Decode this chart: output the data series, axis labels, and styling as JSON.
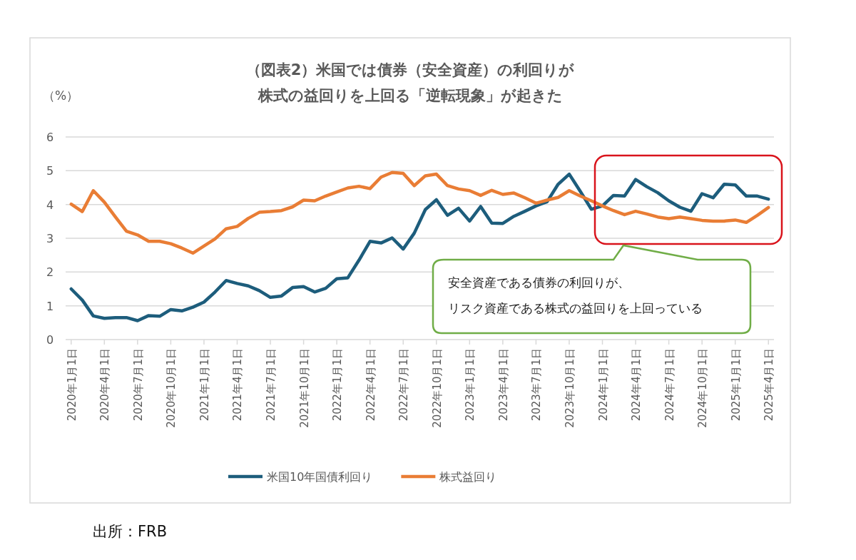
{
  "chart_data": {
    "type": "line",
    "title": "（図表2）米国では債券（安全資産）の利回りが",
    "subtitle": "株式の益回りを上回る「逆転現象」が起きた",
    "ylabel": "（%）",
    "categories": [
      "2020年1月1日",
      null,
      null,
      "2020年4月1日",
      null,
      null,
      "2020年7月1日",
      null,
      null,
      "2020年10月1日",
      null,
      null,
      "2021年1月1日",
      null,
      null,
      "2021年4月1日",
      null,
      null,
      "2021年7月1日",
      null,
      null,
      "2021年10月1日",
      null,
      null,
      "2022年1月1日",
      null,
      null,
      "2022年4月1日",
      null,
      null,
      "2022年7月1日",
      null,
      null,
      "2022年10月1日",
      null,
      null,
      "2023年1月1日",
      null,
      null,
      "2023年4月1日",
      null,
      null,
      "2023年7月1日",
      null,
      null,
      "2023年10月1日",
      null,
      null,
      "2024年1月1日",
      null,
      null,
      "2024年4月1日",
      null,
      null,
      "2024年7月1日",
      null,
      null,
      "2024年10月1日",
      null,
      null,
      "2025年1月1日",
      null,
      null,
      "2025年4月1日"
    ],
    "series": [
      {
        "name": "米国10年国債利回り",
        "color": "#1d5d7c",
        "values": [
          1.5,
          1.17,
          0.7,
          0.63,
          0.65,
          0.65,
          0.56,
          0.71,
          0.69,
          0.89,
          0.85,
          0.96,
          1.11,
          1.41,
          1.75,
          1.66,
          1.59,
          1.45,
          1.25,
          1.29,
          1.54,
          1.57,
          1.41,
          1.52,
          1.8,
          1.83,
          2.35,
          2.91,
          2.86,
          3.01,
          2.68,
          3.15,
          3.85,
          4.14,
          3.68,
          3.89,
          3.51,
          3.94,
          3.45,
          3.44,
          3.65,
          3.8,
          3.96,
          4.08,
          4.6,
          4.9,
          4.39,
          3.86,
          3.96,
          4.27,
          4.25,
          4.74,
          4.53,
          4.35,
          4.11,
          3.92,
          3.8,
          4.32,
          4.2,
          4.6,
          4.58,
          4.25,
          4.25,
          4.16
        ]
      },
      {
        "name": "株式益回り",
        "color": "#e97d35",
        "values": [
          4.01,
          3.79,
          4.41,
          4.07,
          3.63,
          3.21,
          3.1,
          2.91,
          2.91,
          2.84,
          2.71,
          2.56,
          2.77,
          2.98,
          3.28,
          3.35,
          3.59,
          3.77,
          3.79,
          3.82,
          3.93,
          4.13,
          4.11,
          4.25,
          4.37,
          4.49,
          4.54,
          4.47,
          4.81,
          4.95,
          4.92,
          4.56,
          4.85,
          4.9,
          4.56,
          4.46,
          4.41,
          4.27,
          4.42,
          4.3,
          4.34,
          4.2,
          4.04,
          4.13,
          4.21,
          4.41,
          4.25,
          4.11,
          3.96,
          3.82,
          3.7,
          3.8,
          3.72,
          3.63,
          3.58,
          3.63,
          3.58,
          3.53,
          3.51,
          3.51,
          3.54,
          3.47,
          3.68,
          3.91
        ]
      }
    ],
    "ylim": [
      0,
      6
    ],
    "yticks": [
      0,
      1,
      2,
      3,
      4,
      5,
      6
    ],
    "grid": "y",
    "legend": "bottom",
    "marker": "none",
    "line_style": "solid",
    "annotations": [
      "安全資産である債券の利回りが、",
      "リスク資産である株式の益回りを上回っている",
      "出所：FRB"
    ]
  }
}
